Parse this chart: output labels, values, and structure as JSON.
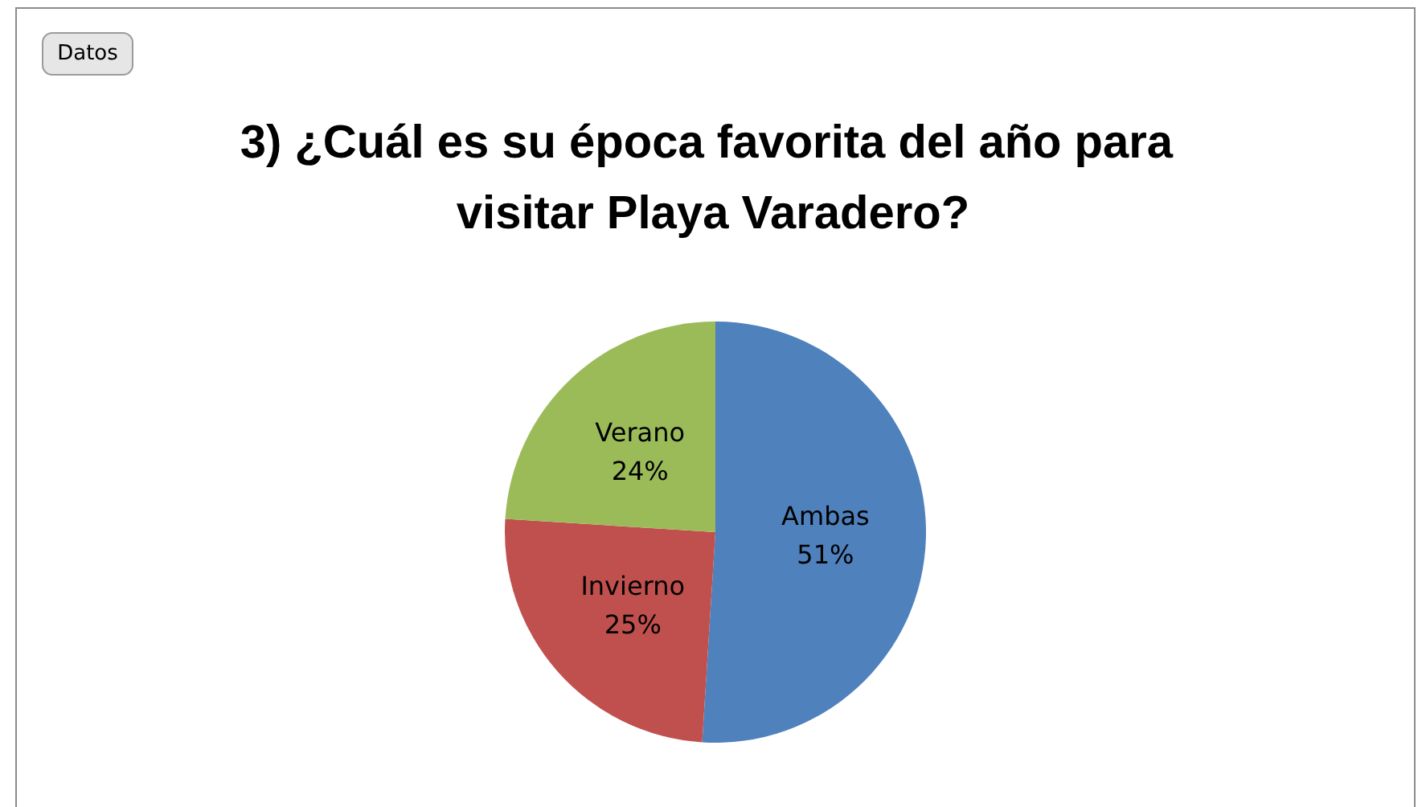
{
  "chart_data": {
    "type": "pie",
    "title": "3) ¿Cuál es su época favorita del año para visitar Playa Varadero?",
    "categories": [
      "Ambas",
      "Invierno",
      "Verano"
    ],
    "values": [
      51,
      25,
      24
    ],
    "colors": [
      "#4f81bd",
      "#c0504d",
      "#9bbb59"
    ],
    "value_labels": [
      "51%",
      "25%",
      "24%"
    ],
    "annotations": [
      "Datos"
    ],
    "legend": false
  }
}
